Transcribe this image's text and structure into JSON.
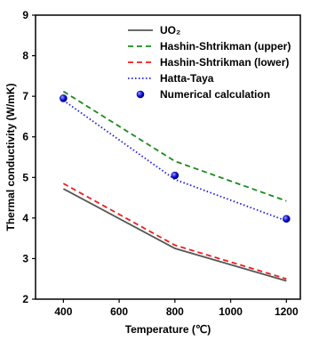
{
  "chart_data": {
    "type": "line",
    "xlabel": "Temperature (℃)",
    "ylabel": "Thermal conductivity (W/mK)",
    "xlim": [
      300,
      1250
    ],
    "ylim": [
      2,
      9
    ],
    "xticks": [
      400,
      600,
      800,
      1000,
      1200
    ],
    "yticks": [
      2,
      3,
      4,
      5,
      6,
      7,
      8,
      9
    ],
    "legend_position": "top-right",
    "grid": false,
    "series": [
      {
        "name": "UO₂",
        "kind": "line",
        "dash": "solid",
        "color": "#555555",
        "x": [
          400,
          800,
          1200
        ],
        "y": [
          4.72,
          3.25,
          2.45
        ]
      },
      {
        "name": "Hashin-Shtrikman (upper)",
        "kind": "line",
        "dash": "dashed",
        "color": "#1b8a1b",
        "x": [
          400,
          800,
          1200
        ],
        "y": [
          7.12,
          5.4,
          4.42
        ]
      },
      {
        "name": "Hashin-Shtrikman (lower)",
        "kind": "line",
        "dash": "dashed",
        "color": "#ee1c1c",
        "x": [
          400,
          800,
          1200
        ],
        "y": [
          4.85,
          3.33,
          2.5
        ]
      },
      {
        "name": "Hatta-Taya",
        "kind": "line",
        "dash": "dotted",
        "color": "#1a1aee",
        "x": [
          400,
          800,
          1200
        ],
        "y": [
          6.9,
          4.95,
          3.93
        ]
      },
      {
        "name": "Numerical calculation",
        "kind": "scatter",
        "color": "#1010e0",
        "x": [
          400,
          800,
          1200
        ],
        "y": [
          6.95,
          5.05,
          3.98
        ]
      }
    ]
  }
}
